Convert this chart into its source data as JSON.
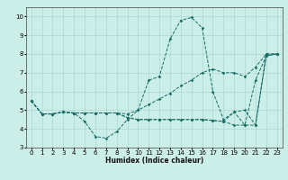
{
  "xlabel": "Humidex (Indice chaleur)",
  "xlim": [
    -0.5,
    23.5
  ],
  "ylim": [
    3,
    10.5
  ],
  "yticks": [
    3,
    4,
    5,
    6,
    7,
    8,
    9,
    10
  ],
  "xticks": [
    0,
    1,
    2,
    3,
    4,
    5,
    6,
    7,
    8,
    9,
    10,
    11,
    12,
    13,
    14,
    15,
    16,
    17,
    18,
    19,
    20,
    21,
    22,
    23
  ],
  "bg_color": "#cceee9",
  "grid_color": "#aad8d2",
  "line_color": "#1a6b65",
  "lines": [
    {
      "x": [
        0,
        1,
        2,
        3,
        4,
        5,
        6,
        7,
        8,
        9,
        10,
        11,
        12,
        13,
        14,
        15,
        16,
        17,
        18,
        19,
        20,
        21,
        22,
        23
      ],
      "y": [
        5.5,
        4.8,
        4.8,
        4.9,
        4.85,
        4.4,
        3.6,
        3.5,
        3.85,
        4.5,
        5.0,
        6.6,
        6.8,
        8.8,
        9.8,
        9.95,
        9.4,
        6.0,
        4.5,
        4.9,
        4.2,
        6.6,
        7.9,
        8.0
      ]
    },
    {
      "x": [
        0,
        1,
        2,
        3,
        4,
        5,
        6,
        7,
        8,
        9,
        10,
        11,
        12,
        13,
        14,
        15,
        16,
        17,
        18,
        19,
        20,
        21,
        22,
        23
      ],
      "y": [
        5.5,
        4.8,
        4.8,
        4.9,
        4.85,
        4.85,
        4.85,
        4.85,
        4.85,
        4.8,
        5.0,
        5.3,
        5.6,
        5.9,
        6.3,
        6.6,
        7.0,
        7.2,
        7.0,
        7.0,
        6.8,
        7.3,
        8.0,
        8.0
      ]
    },
    {
      "x": [
        0,
        1,
        2,
        3,
        4,
        5,
        6,
        7,
        8,
        9,
        10,
        11,
        12,
        13,
        14,
        15,
        16,
        17,
        18,
        19,
        20,
        21,
        22,
        23
      ],
      "y": [
        5.5,
        4.8,
        4.8,
        4.9,
        4.85,
        4.85,
        4.85,
        4.85,
        4.85,
        4.6,
        4.5,
        4.5,
        4.5,
        4.5,
        4.5,
        4.5,
        4.5,
        4.45,
        4.4,
        4.2,
        4.2,
        4.2,
        7.9,
        8.0
      ]
    },
    {
      "x": [
        0,
        1,
        2,
        3,
        4,
        5,
        6,
        7,
        8,
        9,
        10,
        11,
        12,
        13,
        14,
        15,
        16,
        17,
        18,
        19,
        20,
        21,
        22,
        23
      ],
      "y": [
        5.5,
        4.8,
        4.8,
        4.9,
        4.85,
        4.85,
        4.85,
        4.85,
        4.85,
        4.6,
        4.5,
        4.5,
        4.5,
        4.5,
        4.5,
        4.5,
        4.5,
        4.45,
        4.4,
        4.9,
        5.0,
        4.2,
        8.0,
        8.0
      ]
    }
  ]
}
